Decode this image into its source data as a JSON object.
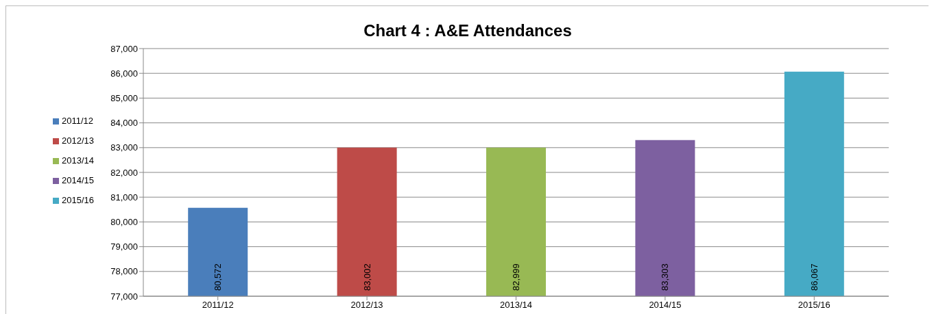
{
  "chart_data": {
    "type": "bar",
    "title": "Chart 4 : A&E Attendances",
    "categories": [
      "2011/12",
      "2012/13",
      "2013/14",
      "2014/15",
      "2015/16"
    ],
    "series": [
      {
        "name": "2011/12",
        "color": "#4a7ebb",
        "values": [
          80572,
          null,
          null,
          null,
          null
        ],
        "value_labels": [
          "80,572",
          null,
          null,
          null,
          null
        ]
      },
      {
        "name": "2012/13",
        "color": "#be4b48",
        "values": [
          null,
          83002,
          null,
          null,
          null
        ],
        "value_labels": [
          null,
          "83,002",
          null,
          null,
          null
        ]
      },
      {
        "name": "2013/14",
        "color": "#98b954",
        "values": [
          null,
          null,
          82999,
          null,
          null
        ],
        "value_labels": [
          null,
          null,
          "82,999",
          null,
          null
        ]
      },
      {
        "name": "2014/15",
        "color": "#7d60a0",
        "values": [
          null,
          null,
          null,
          83303,
          null
        ],
        "value_labels": [
          null,
          null,
          null,
          "83,303",
          null
        ]
      },
      {
        "name": "2015/16",
        "color": "#46aac5",
        "values": [
          null,
          null,
          null,
          null,
          86067
        ],
        "value_labels": [
          null,
          null,
          null,
          null,
          "86,067"
        ]
      }
    ],
    "stacked": true,
    "ylim": [
      77000,
      87000
    ],
    "yticks": [
      {
        "value": 77000,
        "label": "77,000"
      },
      {
        "value": 78000,
        "label": "78,000"
      },
      {
        "value": 79000,
        "label": "79,000"
      },
      {
        "value": 80000,
        "label": "80,000"
      },
      {
        "value": 81000,
        "label": "81,000"
      },
      {
        "value": 82000,
        "label": "82,000"
      },
      {
        "value": 83000,
        "label": "83,000"
      },
      {
        "value": 84000,
        "label": "84,000"
      },
      {
        "value": 85000,
        "label": "85,000"
      },
      {
        "value": 86000,
        "label": "86,000"
      },
      {
        "value": 87000,
        "label": "87,000"
      }
    ],
    "grid": "y",
    "legend": "left"
  }
}
